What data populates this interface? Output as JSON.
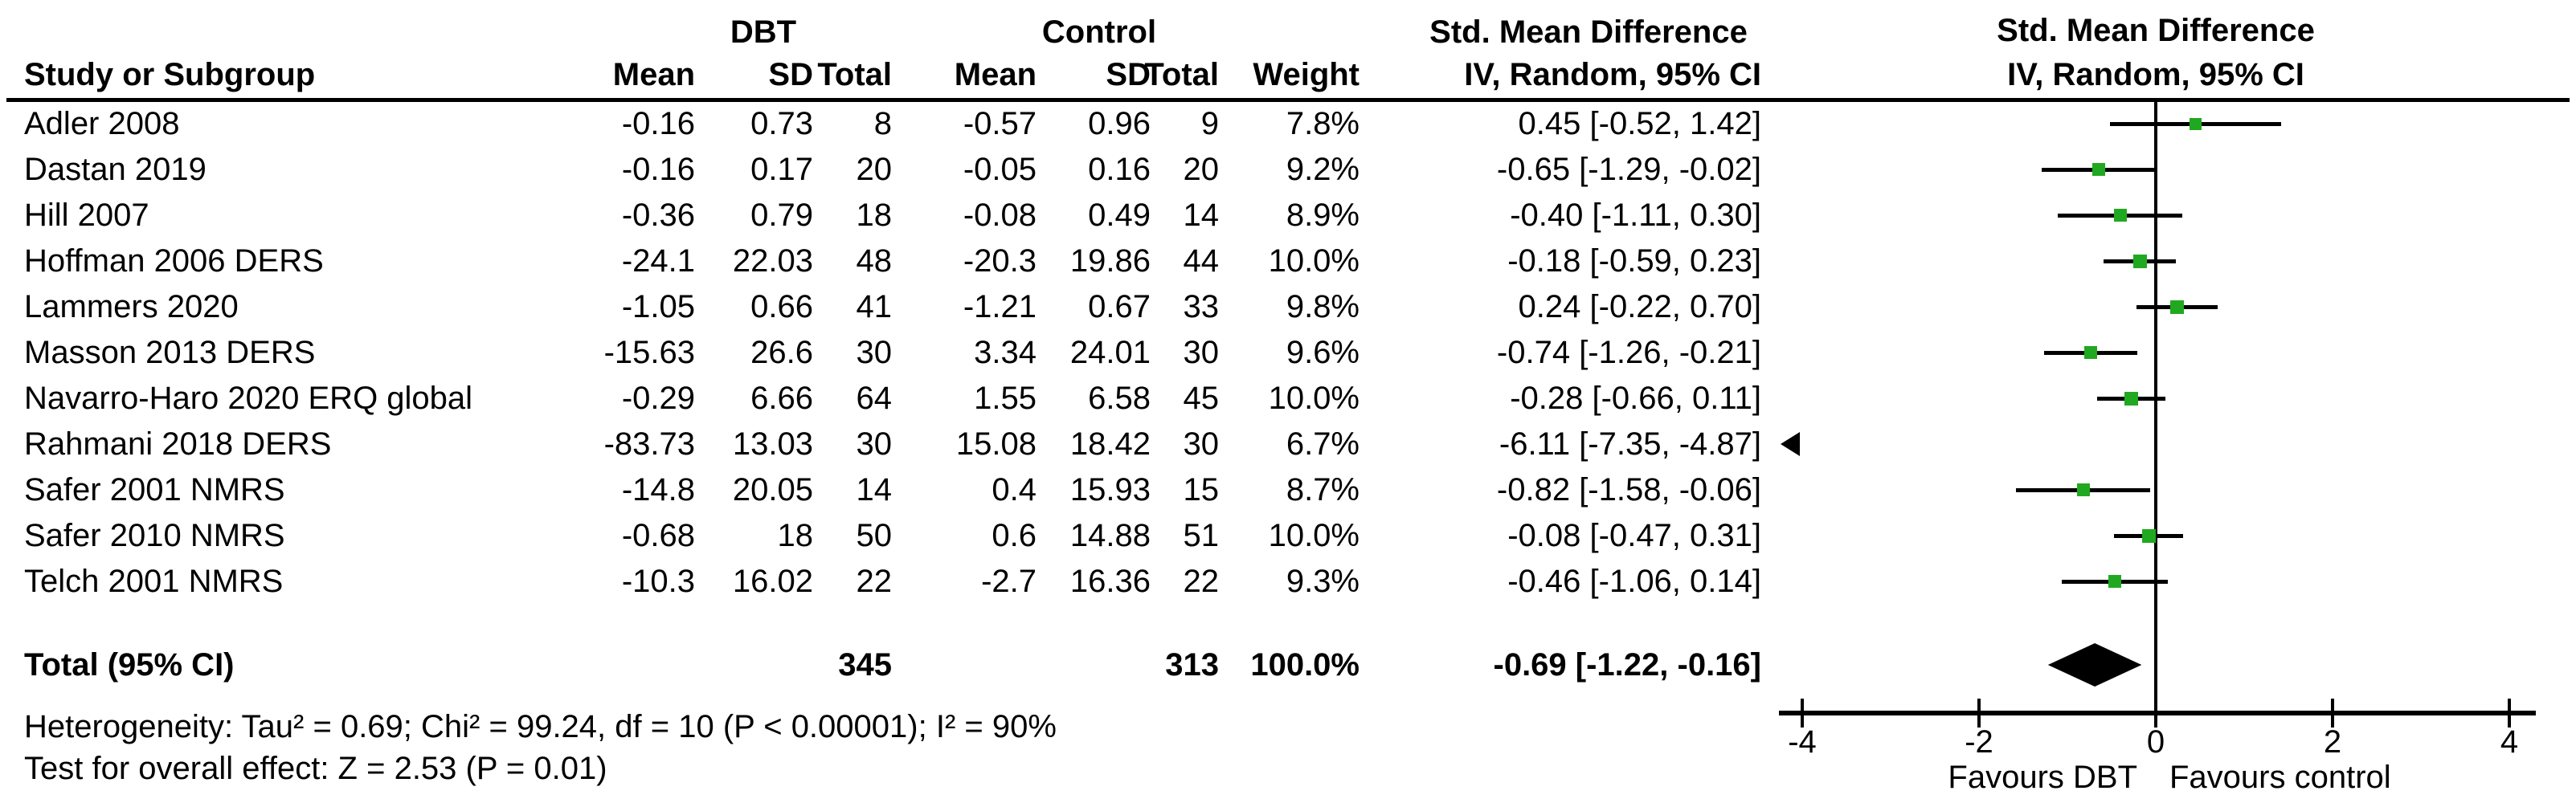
{
  "header": {
    "group1": "DBT",
    "group2": "Control",
    "effect": "Std. Mean Difference",
    "method": "IV, Random, 95% CI",
    "cols": {
      "study": "Study or Subgroup",
      "mean": "Mean",
      "sd": "SD",
      "total": "Total",
      "weight": "Weight"
    }
  },
  "chart_data": {
    "type": "forest",
    "effect_measure": "Std. Mean Difference",
    "method": "IV, Random, 95% CI",
    "studies": [
      {
        "label": "Adler 2008",
        "mean1": "-0.16",
        "sd1": "0.73",
        "n1": "8",
        "mean2": "-0.57",
        "sd2": "0.96",
        "n2": "9",
        "weight": 7.8,
        "weight_text": "7.8%",
        "est": 0.45,
        "lo": -0.52,
        "hi": 1.42,
        "ci_text": "0.45 [-0.52, 1.42]"
      },
      {
        "label": "Dastan 2019",
        "mean1": "-0.16",
        "sd1": "0.17",
        "n1": "20",
        "mean2": "-0.05",
        "sd2": "0.16",
        "n2": "20",
        "weight": 9.2,
        "weight_text": "9.2%",
        "est": -0.65,
        "lo": -1.29,
        "hi": -0.02,
        "ci_text": "-0.65 [-1.29, -0.02]"
      },
      {
        "label": "Hill 2007",
        "mean1": "-0.36",
        "sd1": "0.79",
        "n1": "18",
        "mean2": "-0.08",
        "sd2": "0.49",
        "n2": "14",
        "weight": 8.9,
        "weight_text": "8.9%",
        "est": -0.4,
        "lo": -1.11,
        "hi": 0.3,
        "ci_text": "-0.40 [-1.11, 0.30]"
      },
      {
        "label": "Hoffman 2006 DERS",
        "mean1": "-24.1",
        "sd1": "22.03",
        "n1": "48",
        "mean2": "-20.3",
        "sd2": "19.86",
        "n2": "44",
        "weight": 10.0,
        "weight_text": "10.0%",
        "est": -0.18,
        "lo": -0.59,
        "hi": 0.23,
        "ci_text": "-0.18 [-0.59, 0.23]"
      },
      {
        "label": "Lammers 2020",
        "mean1": "-1.05",
        "sd1": "0.66",
        "n1": "41",
        "mean2": "-1.21",
        "sd2": "0.67",
        "n2": "33",
        "weight": 9.8,
        "weight_text": "9.8%",
        "est": 0.24,
        "lo": -0.22,
        "hi": 0.7,
        "ci_text": "0.24 [-0.22, 0.70]"
      },
      {
        "label": "Masson 2013 DERS",
        "mean1": "-15.63",
        "sd1": "26.6",
        "n1": "30",
        "mean2": "3.34",
        "sd2": "24.01",
        "n2": "30",
        "weight": 9.6,
        "weight_text": "9.6%",
        "est": -0.74,
        "lo": -1.26,
        "hi": -0.21,
        "ci_text": "-0.74 [-1.26, -0.21]"
      },
      {
        "label": "Navarro-Haro 2020 ERQ global",
        "mean1": "-0.29",
        "sd1": "6.66",
        "n1": "64",
        "mean2": "1.55",
        "sd2": "6.58",
        "n2": "45",
        "weight": 10.0,
        "weight_text": "10.0%",
        "est": -0.28,
        "lo": -0.66,
        "hi": 0.11,
        "ci_text": "-0.28 [-0.66, 0.11]"
      },
      {
        "label": "Rahmani 2018 DERS",
        "mean1": "-83.73",
        "sd1": "13.03",
        "n1": "30",
        "mean2": "15.08",
        "sd2": "18.42",
        "n2": "30",
        "weight": 6.7,
        "weight_text": "6.7%",
        "est": -6.11,
        "lo": -7.35,
        "hi": -4.87,
        "ci_text": "-6.11 [-7.35, -4.87]",
        "offscale": "left"
      },
      {
        "label": "Safer 2001 NMRS",
        "mean1": "-14.8",
        "sd1": "20.05",
        "n1": "14",
        "mean2": "0.4",
        "sd2": "15.93",
        "n2": "15",
        "weight": 8.7,
        "weight_text": "8.7%",
        "est": -0.82,
        "lo": -1.58,
        "hi": -0.06,
        "ci_text": "-0.82 [-1.58, -0.06]"
      },
      {
        "label": "Safer 2010 NMRS",
        "mean1": "-0.68",
        "sd1": "18",
        "n1": "50",
        "mean2": "0.6",
        "sd2": "14.88",
        "n2": "51",
        "weight": 10.0,
        "weight_text": "10.0%",
        "est": -0.08,
        "lo": -0.47,
        "hi": 0.31,
        "ci_text": "-0.08 [-0.47, 0.31]"
      },
      {
        "label": "Telch 2001 NMRS",
        "mean1": "-10.3",
        "sd1": "16.02",
        "n1": "22",
        "mean2": "-2.7",
        "sd2": "16.36",
        "n2": "22",
        "weight": 9.3,
        "weight_text": "9.3%",
        "est": -0.46,
        "lo": -1.06,
        "hi": 0.14,
        "ci_text": "-0.46 [-1.06, 0.14]"
      }
    ],
    "total": {
      "label": "Total (95% CI)",
      "n1": "345",
      "n2": "313",
      "weight_text": "100.0%",
      "est": -0.69,
      "lo": -1.22,
      "hi": -0.16,
      "ci_text": "-0.69 [-1.22, -0.16]"
    },
    "axis": {
      "min": -4,
      "max": 4,
      "ticks": [
        -4,
        -2,
        0,
        2,
        4
      ],
      "favours_left": "Favours DBT",
      "favours_right": "Favours control"
    }
  },
  "footer": {
    "heterogeneity": "Heterogeneity: Tau² = 0.69; Chi² = 99.24, df = 10 (P < 0.00001); I² = 90%",
    "overall_effect": "Test for overall effect: Z = 2.53 (P = 0.01)"
  },
  "colors": {
    "background": "#ffffff",
    "text": "#000000",
    "marker_green": "#21a821",
    "line": "#000000"
  }
}
